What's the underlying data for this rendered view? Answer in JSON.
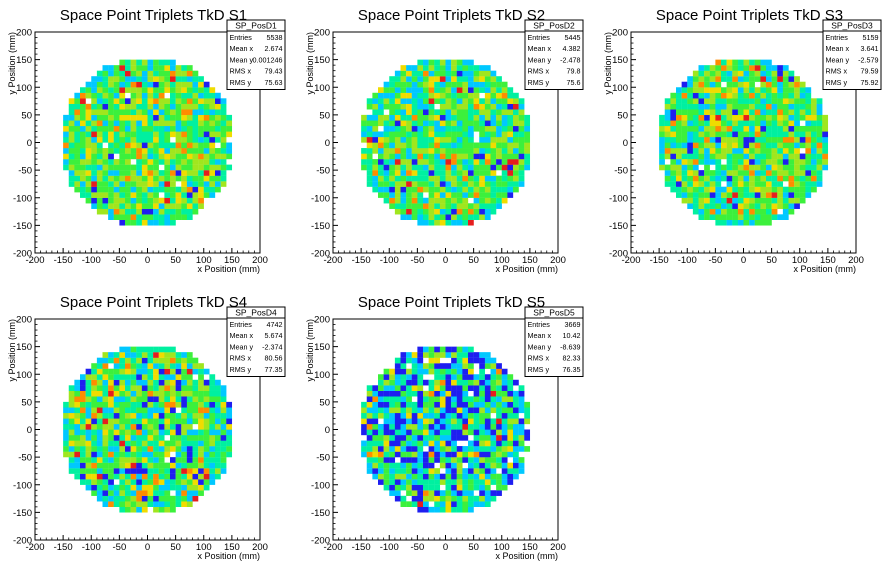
{
  "chart_data": [
    {
      "type": "heatmap",
      "title": "Space Point Triplets TkD S1",
      "xlabel": "x Position (mm)",
      "ylabel": "y Position (mm)",
      "xlim": [
        -200,
        200
      ],
      "ylim": [
        -200,
        200
      ],
      "xticks": [
        -200,
        -150,
        -100,
        -50,
        0,
        50,
        100,
        150,
        200
      ],
      "yticks": [
        -200,
        -150,
        -100,
        -50,
        0,
        50,
        100,
        150,
        200
      ],
      "disk_radius": 155,
      "bin_width": 10,
      "stats": {
        "name": "SP_PosD1",
        "rows": [
          {
            "label": "Entries",
            "value": "5538"
          },
          {
            "label": "Mean x",
            "value": "2.674"
          },
          {
            "label": "Mean y",
            "value": "0.001246"
          },
          {
            "label": "RMS x",
            "value": "79.43"
          },
          {
            "label": "RMS y",
            "value": "75.63"
          }
        ]
      }
    },
    {
      "type": "heatmap",
      "title": "Space Point Triplets TkD S2",
      "xlabel": "x Position (mm)",
      "ylabel": "y Position (mm)",
      "xlim": [
        -200,
        200
      ],
      "ylim": [
        -200,
        200
      ],
      "xticks": [
        -200,
        -150,
        -100,
        -50,
        0,
        50,
        100,
        150,
        200
      ],
      "yticks": [
        -200,
        -150,
        -100,
        -50,
        0,
        50,
        100,
        150,
        200
      ],
      "disk_radius": 155,
      "bin_width": 10,
      "stats": {
        "name": "SP_PosD2",
        "rows": [
          {
            "label": "Entries",
            "value": "5445"
          },
          {
            "label": "Mean x",
            "value": "4.382"
          },
          {
            "label": "Mean y",
            "value": "-2.478"
          },
          {
            "label": "RMS x",
            "value": "79.8"
          },
          {
            "label": "RMS y",
            "value": "75.6"
          }
        ]
      }
    },
    {
      "type": "heatmap",
      "title": "Space Point Triplets TkD S3",
      "xlabel": "x Position (mm)",
      "ylabel": "y Position (mm)",
      "xlim": [
        -200,
        200
      ],
      "ylim": [
        -200,
        200
      ],
      "xticks": [
        -200,
        -150,
        -100,
        -50,
        0,
        50,
        100,
        150,
        200
      ],
      "yticks": [
        -200,
        -150,
        -100,
        -50,
        0,
        50,
        100,
        150,
        200
      ],
      "disk_radius": 155,
      "bin_width": 10,
      "stats": {
        "name": "SP_PosD3",
        "rows": [
          {
            "label": "Entries",
            "value": "5159"
          },
          {
            "label": "Mean x",
            "value": "3.641"
          },
          {
            "label": "Mean y",
            "value": "-2.579"
          },
          {
            "label": "RMS x",
            "value": "79.59"
          },
          {
            "label": "RMS y",
            "value": "75.92"
          }
        ]
      }
    },
    {
      "type": "heatmap",
      "title": "Space Point Triplets TkD S4",
      "xlabel": "x Position (mm)",
      "ylabel": "y Position (mm)",
      "xlim": [
        -200,
        200
      ],
      "ylim": [
        -200,
        200
      ],
      "xticks": [
        -200,
        -150,
        -100,
        -50,
        0,
        50,
        100,
        150,
        200
      ],
      "yticks": [
        -200,
        -150,
        -100,
        -50,
        0,
        50,
        100,
        150,
        200
      ],
      "disk_radius": 155,
      "bin_width": 10,
      "stats": {
        "name": "SP_PosD4",
        "rows": [
          {
            "label": "Entries",
            "value": "4742"
          },
          {
            "label": "Mean x",
            "value": "5.674"
          },
          {
            "label": "Mean y",
            "value": "-2.374"
          },
          {
            "label": "RMS x",
            "value": "80.56"
          },
          {
            "label": "RMS y",
            "value": "77.35"
          }
        ]
      }
    },
    {
      "type": "heatmap",
      "title": "Space Point Triplets TkD S5",
      "xlabel": "x Position (mm)",
      "ylabel": "y Position (mm)",
      "xlim": [
        -200,
        200
      ],
      "ylim": [
        -200,
        200
      ],
      "xticks": [
        -200,
        -150,
        -100,
        -50,
        0,
        50,
        100,
        150,
        200
      ],
      "yticks": [
        -200,
        -150,
        -100,
        -50,
        0,
        50,
        100,
        150,
        200
      ],
      "disk_radius": 155,
      "bin_width": 10,
      "stats": {
        "name": "SP_PosD5",
        "rows": [
          {
            "label": "Entries",
            "value": "3669"
          },
          {
            "label": "Mean x",
            "value": "10.42"
          },
          {
            "label": "Mean y",
            "value": "-8.639"
          },
          {
            "label": "RMS x",
            "value": "82.33"
          },
          {
            "label": "RMS y",
            "value": "76.35"
          }
        ]
      }
    }
  ],
  "palette": [
    "#1e1ef0",
    "#00c8ff",
    "#00f0a0",
    "#3cf03c",
    "#a0e61e",
    "#f0dc00",
    "#ff8c00",
    "#e61e1e"
  ]
}
